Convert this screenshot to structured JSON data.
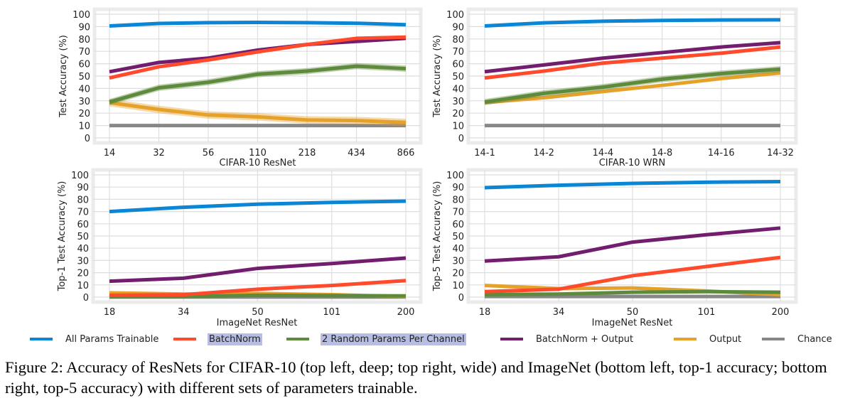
{
  "legend": [
    {
      "name": "All Params Trainable",
      "color": "#0a86d4",
      "highlight": false
    },
    {
      "name": "BatchNorm",
      "color": "#ff4b2b",
      "highlight": true
    },
    {
      "name": "2 Random Params Per Channel",
      "color": "#5e8a3c",
      "highlight": true
    },
    {
      "name": "BatchNorm + Output",
      "color": "#731d6f",
      "highlight": false
    },
    {
      "name": "Output",
      "color": "#e6a12a",
      "highlight": false
    },
    {
      "name": "Chance",
      "color": "#878787",
      "highlight": false
    }
  ],
  "caption": "Figure 2: Accuracy of ResNets for CIFAR-10 (top left, deep; top right, wide) and ImageNet (bottom left, top-1 accuracy; bottom right, top-5 accuracy) with different sets of parameters trainable.",
  "chart_data": [
    {
      "type": "line",
      "position": "top-left",
      "title": "",
      "xlabel": "CIFAR-10 ResNet",
      "ylabel": "Test Accuracy (%)",
      "categories": [
        "14",
        "32",
        "56",
        "110",
        "218",
        "434",
        "866"
      ],
      "ylim": [
        0,
        100
      ],
      "yticks": [
        0,
        10,
        20,
        30,
        40,
        50,
        60,
        70,
        80,
        90,
        100
      ],
      "grid": true,
      "series": [
        {
          "name": "All Params Trainable",
          "values": [
            90.5,
            92.5,
            93.2,
            93.4,
            93.2,
            92.7,
            91.5
          ],
          "band": 1.2
        },
        {
          "name": "BatchNorm",
          "values": [
            48.5,
            57.5,
            63,
            69.5,
            75.5,
            80.5,
            81.5
          ],
          "band": 0.8
        },
        {
          "name": "2 Random Params Per Channel",
          "values": [
            29,
            40.5,
            45,
            51.5,
            54,
            58,
            56
          ],
          "band": 2.5
        },
        {
          "name": "BatchNorm + Output",
          "values": [
            53.5,
            61,
            64.5,
            71,
            75.5,
            78,
            80.5
          ],
          "band": 0.8
        },
        {
          "name": "Output",
          "values": [
            28.5,
            23,
            18.5,
            17,
            14.5,
            14,
            12.5
          ],
          "band": 3
        },
        {
          "name": "Chance",
          "values": [
            10,
            10,
            10,
            10,
            10,
            10,
            10
          ],
          "band": 0
        }
      ]
    },
    {
      "type": "line",
      "position": "top-right",
      "title": "",
      "xlabel": "CIFAR-10 WRN",
      "ylabel": "Test Accuracy (%)",
      "categories": [
        "14-1",
        "14-2",
        "14-4",
        "14-8",
        "14-16",
        "14-32"
      ],
      "ylim": [
        0,
        100
      ],
      "yticks": [
        0,
        10,
        20,
        30,
        40,
        50,
        60,
        70,
        80,
        90,
        100
      ],
      "grid": true,
      "series": [
        {
          "name": "All Params Trainable",
          "values": [
            90.5,
            93,
            94.3,
            95,
            95.3,
            95.5
          ],
          "band": 0.5
        },
        {
          "name": "BatchNorm",
          "values": [
            48.5,
            54,
            60.5,
            64.5,
            68.5,
            73.5
          ],
          "band": 0.6
        },
        {
          "name": "2 Random Params Per Channel",
          "values": [
            29,
            36,
            41,
            47.5,
            52,
            55.5
          ],
          "band": 2.5
        },
        {
          "name": "BatchNorm + Output",
          "values": [
            53.5,
            59,
            64.5,
            69,
            73.5,
            77
          ],
          "band": 0.6
        },
        {
          "name": "Output",
          "values": [
            28.5,
            32.5,
            37.5,
            42.5,
            48,
            52.5
          ],
          "band": 0.8
        },
        {
          "name": "Chance",
          "values": [
            10,
            10,
            10,
            10,
            10,
            10
          ],
          "band": 0
        }
      ]
    },
    {
      "type": "line",
      "position": "bottom-left",
      "title": "",
      "xlabel": "ImageNet ResNet",
      "ylabel": "Top-1 Test Accuracy (%)",
      "categories": [
        "18",
        "34",
        "50",
        "101",
        "200"
      ],
      "ylim": [
        0,
        100
      ],
      "yticks": [
        0,
        10,
        20,
        30,
        40,
        50,
        60,
        70,
        80,
        90,
        100
      ],
      "grid": true,
      "series": [
        {
          "name": "All Params Trainable",
          "values": [
            70,
            73.5,
            76,
            77.5,
            78.5
          ],
          "band": 0
        },
        {
          "name": "BatchNorm",
          "values": [
            1.5,
            2,
            6.5,
            9.5,
            13.5
          ],
          "band": 0
        },
        {
          "name": "2 Random Params Per Channel",
          "values": [
            0.2,
            0.5,
            1.5,
            1.2,
            1
          ],
          "band": 0
        },
        {
          "name": "BatchNorm + Output",
          "values": [
            13,
            15.5,
            23.5,
            27.5,
            32
          ],
          "band": 0
        },
        {
          "name": "Output",
          "values": [
            3.5,
            2.5,
            3,
            2,
            0.5
          ],
          "band": 0
        },
        {
          "name": "Chance",
          "values": [
            0.1,
            0.1,
            0.1,
            0.1,
            0.1
          ],
          "band": 0
        }
      ]
    },
    {
      "type": "line",
      "position": "bottom-right",
      "title": "",
      "xlabel": "ImageNet ResNet",
      "ylabel": "Top-5 Test Accuracy (%)",
      "categories": [
        "18",
        "34",
        "50",
        "101",
        "200"
      ],
      "ylim": [
        0,
        100
      ],
      "yticks": [
        0,
        10,
        20,
        30,
        40,
        50,
        60,
        70,
        80,
        90,
        100
      ],
      "grid": true,
      "series": [
        {
          "name": "All Params Trainable",
          "values": [
            89.5,
            91.5,
            93,
            94,
            94.5
          ],
          "band": 0
        },
        {
          "name": "BatchNorm",
          "values": [
            4.5,
            6.5,
            17.5,
            25,
            32.5
          ],
          "band": 0
        },
        {
          "name": "2 Random Params Per Channel",
          "values": [
            2,
            2.5,
            4,
            4.5,
            4
          ],
          "band": 0
        },
        {
          "name": "BatchNorm + Output",
          "values": [
            29.5,
            33,
            45,
            51,
            56.5
          ],
          "band": 0
        },
        {
          "name": "Output",
          "values": [
            9.5,
            7,
            7.5,
            5,
            2
          ],
          "band": 0
        },
        {
          "name": "Chance",
          "values": [
            0.5,
            0.5,
            0.5,
            0.5,
            0.5
          ],
          "band": 0
        }
      ]
    }
  ]
}
